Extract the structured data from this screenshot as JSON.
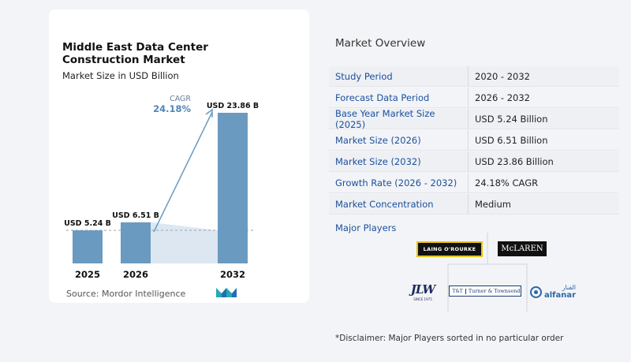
{
  "chart": {
    "title": "Middle East Data Center Construction Market",
    "subtitle": "Market Size in USD Billion",
    "source": "Source:  Mordor Intelligence",
    "cagr_label": "CAGR",
    "cagr_value": "24.18%"
  },
  "chart_data": {
    "type": "bar",
    "title": "Middle East Data Center Construction Market",
    "subtitle": "Market Size in USD Billion",
    "categories": [
      "2025",
      "2026",
      "2032"
    ],
    "values": [
      5.24,
      6.51,
      23.86
    ],
    "data_labels": [
      "USD 5.24 B",
      "USD 6.51 B",
      "USD 23.86 B"
    ],
    "annotation": "CAGR 24.18%",
    "ylim": [
      0,
      24
    ],
    "grid": false,
    "colors": {
      "bar": "#6a9ac0",
      "bar_light": "#dce7f1",
      "arrow": "#6a9ac0",
      "cagr_text": "#4e86b8"
    }
  },
  "overview": {
    "title": "Market Overview",
    "rows": [
      {
        "label": "Study Period",
        "value": "2020 - 2032"
      },
      {
        "label": "Forecast Data Period",
        "value": "2026 - 2032"
      },
      {
        "label": "Base Year Market Size (2025)",
        "value": "USD 5.24 Billion"
      },
      {
        "label": "Market Size (2026)",
        "value": "USD 6.51 Billion"
      },
      {
        "label": "Market Size (2032)",
        "value": "USD 23.86 Billion"
      },
      {
        "label": "Growth Rate (2026 - 2032)",
        "value": "24.18% CAGR"
      },
      {
        "label": "Market Concentration",
        "value": "Medium"
      }
    ]
  },
  "players": {
    "title": "Major Players",
    "logos": {
      "laing": "LAING O'ROURKE",
      "mclaren": "McLAREN",
      "jlw": "JLW",
      "jlw_sub": "SINCE 1975",
      "turner_mark": "T&T",
      "turner": "Turner & Townsend",
      "alfanar_ar": "الفنار",
      "alfanar_en": "alfanar"
    }
  },
  "disclaimer": "*Disclaimer: Major Players sorted in no particular order"
}
